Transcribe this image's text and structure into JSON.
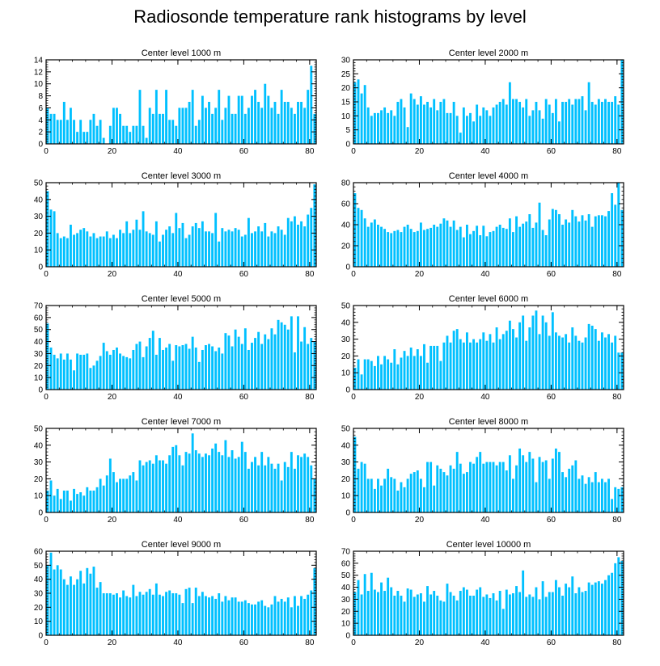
{
  "figure": {
    "title": "Radiosonde temperature rank histograms by level"
  },
  "colors": {
    "bar": "#00c0ff",
    "frame": "#000000"
  },
  "chart_data": [
    {
      "type": "bar",
      "title": "Center level 1000 m",
      "xlim": [
        0,
        82
      ],
      "ylim": [
        0,
        14
      ],
      "xticks": [
        0,
        20,
        40,
        60,
        80
      ],
      "yticks": [
        0,
        2,
        4,
        6,
        8,
        10,
        12,
        14
      ],
      "values": [
        6,
        5,
        5,
        4,
        4,
        7,
        4,
        6,
        4,
        2,
        4,
        2,
        2,
        4,
        5,
        3,
        4,
        1,
        0,
        3,
        6,
        6,
        5,
        3,
        3,
        2,
        3,
        3,
        9,
        3,
        1,
        6,
        5,
        9,
        5,
        5,
        9,
        4,
        4,
        3,
        6,
        6,
        6,
        7,
        9,
        3,
        4,
        8,
        6,
        7,
        5,
        6,
        9,
        4,
        6,
        8,
        5,
        5,
        8,
        8,
        5,
        6,
        8,
        9,
        7,
        6,
        10,
        8,
        6,
        7,
        5,
        9,
        7,
        7,
        6,
        5,
        7,
        7,
        6,
        9,
        13,
        5
      ]
    },
    {
      "type": "bar",
      "title": "Center level 2000 m",
      "xlim": [
        0,
        82
      ],
      "ylim": [
        0,
        30
      ],
      "xticks": [
        0,
        20,
        40,
        60,
        80
      ],
      "yticks": [
        0,
        5,
        10,
        15,
        20,
        25,
        30
      ],
      "values": [
        22,
        23,
        18,
        21,
        13,
        10,
        11,
        11,
        12,
        13,
        11,
        12,
        10,
        15,
        16,
        13,
        6,
        18,
        16,
        14,
        17,
        14,
        15,
        13,
        16,
        12,
        15,
        16,
        11,
        11,
        15,
        10,
        4,
        13,
        10,
        11,
        8,
        14,
        10,
        13,
        12,
        10,
        13,
        14,
        15,
        16,
        14,
        22,
        16,
        16,
        15,
        13,
        16,
        10,
        12,
        15,
        12,
        9,
        16,
        14,
        11,
        16,
        8,
        15,
        15,
        16,
        14,
        16,
        16,
        17,
        12,
        22,
        15,
        14,
        16,
        15,
        16,
        15,
        15,
        17,
        14,
        30
      ]
    },
    {
      "type": "bar",
      "title": "Center level 3000 m",
      "xlim": [
        0,
        82
      ],
      "ylim": [
        0,
        50
      ],
      "xticks": [
        0,
        20,
        40,
        60,
        80
      ],
      "yticks": [
        0,
        10,
        20,
        30,
        40,
        50
      ],
      "values": [
        45,
        34,
        33,
        20,
        17,
        18,
        17,
        25,
        19,
        20,
        22,
        23,
        21,
        18,
        20,
        17,
        18,
        18,
        21,
        17,
        19,
        17,
        22,
        20,
        27,
        20,
        22,
        28,
        22,
        33,
        21,
        20,
        19,
        27,
        15,
        19,
        22,
        24,
        20,
        32,
        23,
        26,
        17,
        19,
        24,
        26,
        23,
        27,
        21,
        21,
        20,
        32,
        15,
        23,
        21,
        22,
        21,
        23,
        22,
        18,
        19,
        29,
        20,
        21,
        24,
        21,
        26,
        18,
        21,
        20,
        24,
        22,
        19,
        29,
        27,
        30,
        25,
        27,
        24,
        31,
        35,
        49
      ]
    },
    {
      "type": "bar",
      "title": "Center level 4000 m",
      "xlim": [
        0,
        82
      ],
      "ylim": [
        0,
        80
      ],
      "xticks": [
        0,
        20,
        40,
        60,
        80
      ],
      "yticks": [
        0,
        20,
        40,
        60,
        80
      ],
      "values": [
        70,
        56,
        54,
        46,
        38,
        42,
        45,
        40,
        38,
        36,
        33,
        32,
        34,
        35,
        33,
        38,
        40,
        36,
        33,
        34,
        42,
        35,
        36,
        37,
        40,
        38,
        41,
        46,
        44,
        38,
        44,
        35,
        38,
        28,
        40,
        31,
        34,
        39,
        30,
        39,
        29,
        33,
        34,
        38,
        40,
        37,
        36,
        46,
        33,
        48,
        38,
        41,
        43,
        50,
        37,
        42,
        61,
        35,
        30,
        45,
        55,
        54,
        50,
        40,
        45,
        42,
        54,
        48,
        43,
        49,
        44,
        50,
        38,
        48,
        49,
        49,
        48,
        53,
        70,
        59,
        80,
        54
      ]
    },
    {
      "type": "bar",
      "title": "Center level 5000 m",
      "xlim": [
        0,
        82
      ],
      "ylim": [
        0,
        70
      ],
      "xticks": [
        0,
        20,
        40,
        60,
        80
      ],
      "yticks": [
        0,
        10,
        20,
        30,
        40,
        50,
        60,
        70
      ],
      "values": [
        55,
        35,
        29,
        26,
        30,
        25,
        30,
        25,
        16,
        30,
        29,
        29,
        30,
        18,
        20,
        24,
        28,
        39,
        32,
        29,
        33,
        35,
        30,
        28,
        27,
        26,
        33,
        38,
        40,
        27,
        36,
        43,
        49,
        29,
        43,
        33,
        35,
        38,
        24,
        37,
        36,
        37,
        38,
        34,
        44,
        35,
        23,
        33,
        37,
        38,
        36,
        32,
        35,
        30,
        47,
        45,
        36,
        50,
        44,
        38,
        51,
        33,
        39,
        43,
        48,
        38,
        46,
        42,
        51,
        46,
        58,
        56,
        54,
        50,
        61,
        31,
        61,
        40,
        52,
        38,
        43,
        40
      ]
    },
    {
      "type": "bar",
      "title": "Center level 6000 m",
      "xlim": [
        0,
        82
      ],
      "ylim": [
        0,
        50
      ],
      "xticks": [
        0,
        20,
        40,
        60,
        80
      ],
      "yticks": [
        0,
        10,
        20,
        30,
        40,
        50
      ],
      "values": [
        13,
        18,
        9,
        18,
        18,
        17,
        14,
        20,
        15,
        20,
        18,
        16,
        24,
        15,
        19,
        23,
        20,
        25,
        20,
        24,
        20,
        27,
        16,
        26,
        26,
        26,
        17,
        28,
        32,
        28,
        35,
        36,
        30,
        28,
        34,
        28,
        30,
        28,
        30,
        34,
        29,
        33,
        28,
        37,
        30,
        33,
        35,
        41,
        36,
        31,
        40,
        44,
        29,
        37,
        44,
        47,
        33,
        44,
        40,
        32,
        46,
        34,
        32,
        31,
        33,
        28,
        37,
        32,
        29,
        28,
        31,
        39,
        38,
        36,
        29,
        34,
        31,
        33,
        28,
        32,
        22,
        22
      ]
    },
    {
      "type": "bar",
      "title": "Center level 7000 m",
      "xlim": [
        0,
        82
      ],
      "ylim": [
        0,
        50
      ],
      "xticks": [
        0,
        20,
        40,
        60,
        80
      ],
      "yticks": [
        0,
        10,
        20,
        30,
        40,
        50
      ],
      "values": [
        13,
        19,
        10,
        14,
        8,
        13,
        13,
        7,
        14,
        11,
        12,
        10,
        15,
        13,
        13,
        15,
        20,
        16,
        22,
        32,
        24,
        18,
        20,
        20,
        20,
        22,
        24,
        19,
        31,
        28,
        30,
        31,
        29,
        34,
        31,
        31,
        29,
        34,
        39,
        40,
        34,
        28,
        36,
        35,
        47,
        37,
        35,
        33,
        35,
        34,
        38,
        41,
        36,
        34,
        43,
        33,
        37,
        32,
        33,
        42,
        36,
        26,
        30,
        33,
        28,
        36,
        28,
        33,
        29,
        26,
        29,
        19,
        30,
        27,
        36,
        26,
        34,
        33,
        35,
        33,
        28,
        20
      ]
    },
    {
      "type": "bar",
      "title": "Center level 8000 m",
      "xlim": [
        0,
        82
      ],
      "ylim": [
        0,
        50
      ],
      "xticks": [
        0,
        20,
        40,
        60,
        80
      ],
      "yticks": [
        0,
        10,
        20,
        30,
        40,
        50
      ],
      "values": [
        45,
        26,
        30,
        29,
        20,
        20,
        14,
        20,
        16,
        20,
        26,
        21,
        20,
        13,
        18,
        15,
        20,
        23,
        24,
        25,
        20,
        15,
        30,
        30,
        16,
        28,
        26,
        24,
        22,
        28,
        26,
        36,
        29,
        23,
        24,
        30,
        29,
        33,
        36,
        29,
        30,
        30,
        30,
        28,
        30,
        30,
        25,
        34,
        20,
        28,
        38,
        34,
        30,
        36,
        32,
        18,
        33,
        30,
        31,
        20,
        32,
        38,
        36,
        24,
        21,
        26,
        28,
        31,
        20,
        22,
        17,
        21,
        18,
        24,
        18,
        20,
        18,
        20,
        8,
        15,
        14,
        15
      ]
    },
    {
      "type": "bar",
      "title": "Center level 9000 m",
      "xlim": [
        0,
        82
      ],
      "ylim": [
        0,
        60
      ],
      "xticks": [
        0,
        20,
        40,
        60,
        80
      ],
      "yticks": [
        0,
        10,
        20,
        30,
        40,
        50,
        60
      ],
      "values": [
        50,
        59,
        47,
        50,
        47,
        40,
        36,
        42,
        36,
        40,
        46,
        37,
        48,
        44,
        49,
        34,
        38,
        30,
        30,
        30,
        29,
        30,
        27,
        32,
        28,
        27,
        36,
        28,
        31,
        29,
        31,
        33,
        29,
        37,
        29,
        28,
        31,
        32,
        30,
        30,
        29,
        23,
        33,
        34,
        23,
        34,
        28,
        31,
        28,
        27,
        28,
        26,
        30,
        24,
        28,
        25,
        27,
        27,
        24,
        24,
        25,
        23,
        22,
        22,
        24,
        25,
        21,
        20,
        22,
        28,
        24,
        26,
        24,
        27,
        20,
        28,
        21,
        28,
        26,
        29,
        32,
        48
      ]
    },
    {
      "type": "bar",
      "title": "Center level 10000 m",
      "xlim": [
        0,
        82
      ],
      "ylim": [
        0,
        70
      ],
      "xticks": [
        0,
        20,
        40,
        60,
        80
      ],
      "yticks": [
        0,
        10,
        20,
        30,
        40,
        50,
        60,
        70
      ],
      "values": [
        36,
        46,
        34,
        51,
        37,
        52,
        38,
        36,
        44,
        37,
        48,
        40,
        33,
        37,
        33,
        28,
        39,
        38,
        32,
        34,
        35,
        28,
        41,
        34,
        37,
        33,
        29,
        28,
        43,
        36,
        33,
        29,
        37,
        40,
        38,
        33,
        33,
        38,
        40,
        32,
        34,
        31,
        35,
        29,
        37,
        22,
        38,
        34,
        35,
        41,
        36,
        54,
        32,
        34,
        32,
        40,
        30,
        45,
        32,
        36,
        36,
        46,
        40,
        33,
        43,
        40,
        49,
        35,
        40,
        36,
        37,
        44,
        42,
        44,
        45,
        43,
        46,
        50,
        52,
        60,
        65,
        62
      ]
    }
  ]
}
